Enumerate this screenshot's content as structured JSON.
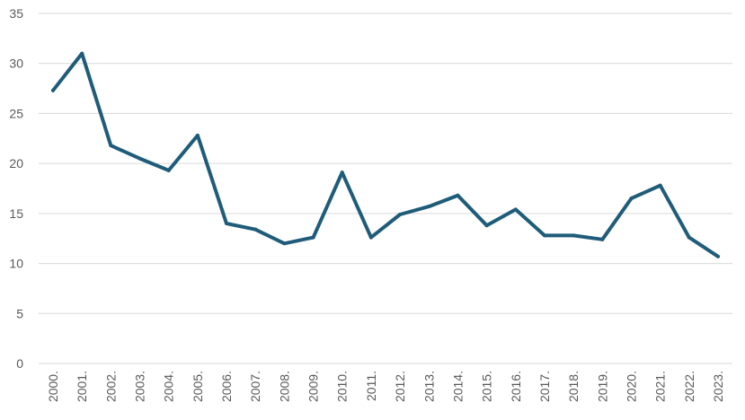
{
  "chart_data": {
    "type": "line",
    "title": "",
    "xlabel": "",
    "ylabel": "",
    "categories": [
      "2000.",
      "2001.",
      "2002.",
      "2003.",
      "2004.",
      "2005.",
      "2006.",
      "2007.",
      "2008.",
      "2009.",
      "2010.",
      "2011.",
      "2012.",
      "2013.",
      "2014.",
      "2015.",
      "2016.",
      "2017.",
      "2018.",
      "2019.",
      "2020.",
      "2021.",
      "2022.",
      "2023."
    ],
    "series": [
      {
        "color": "#1f5c7a",
        "values": [
          27.3,
          31.0,
          21.8,
          20.5,
          19.3,
          22.8,
          14.0,
          13.4,
          12.0,
          12.6,
          19.1,
          12.6,
          14.9,
          15.7,
          16.8,
          13.8,
          15.4,
          12.8,
          12.8,
          12.4,
          16.5,
          17.8,
          12.6,
          10.7
        ]
      }
    ],
    "ylim": [
      0,
      35
    ],
    "yticks": [
      0,
      5,
      10,
      15,
      20,
      25,
      30,
      35
    ],
    "grid": true,
    "legend": "none"
  }
}
